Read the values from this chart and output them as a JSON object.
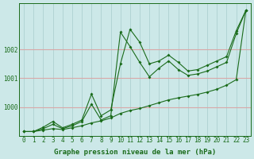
{
  "xlabel": "Graphe pression niveau de la mer (hPa)",
  "bg_color": "#cce8e8",
  "grid_color_h": "#d8a8a8",
  "grid_color_v": "#a8cccc",
  "line_color": "#1a6b1a",
  "xlim": [
    -0.5,
    23.5
  ],
  "ylim": [
    999.0,
    1003.6
  ],
  "yticks": [
    1000,
    1001,
    1002
  ],
  "ytick_labels": [
    "1000",
    "1001",
    "1002"
  ],
  "xticks": [
    0,
    1,
    2,
    3,
    4,
    5,
    6,
    7,
    8,
    9,
    10,
    11,
    12,
    13,
    14,
    15,
    16,
    17,
    18,
    19,
    20,
    21,
    22,
    23
  ],
  "line1_x": [
    0,
    1,
    2,
    3,
    4,
    5,
    6,
    7,
    8,
    9,
    10,
    11,
    12,
    13,
    14,
    15,
    16,
    17,
    18,
    19,
    20,
    21,
    22,
    23
  ],
  "line1_y": [
    999.15,
    999.15,
    999.2,
    999.25,
    999.22,
    999.28,
    999.35,
    999.45,
    999.52,
    999.62,
    999.78,
    999.88,
    999.95,
    1000.05,
    1000.15,
    1000.25,
    1000.32,
    1000.38,
    1000.44,
    1000.52,
    1000.62,
    1000.76,
    1000.95,
    1003.35
  ],
  "line2_x": [
    0,
    1,
    2,
    3,
    4,
    5,
    6,
    7,
    8,
    9,
    10,
    11,
    12,
    13,
    14,
    15,
    16,
    17,
    18,
    19,
    20,
    21,
    22,
    23
  ],
  "line2_y": [
    999.15,
    999.15,
    999.25,
    999.4,
    999.25,
    999.35,
    999.5,
    1000.1,
    999.55,
    999.7,
    1002.6,
    1002.1,
    1001.55,
    1001.05,
    1001.35,
    1001.6,
    1001.3,
    1001.1,
    1001.15,
    1001.25,
    1001.4,
    1001.55,
    1002.55,
    1003.35
  ],
  "line3_x": [
    0,
    1,
    2,
    3,
    4,
    5,
    6,
    7,
    8,
    9,
    10,
    11,
    12,
    13,
    14,
    15,
    16,
    17,
    18,
    19,
    20,
    21,
    22,
    23
  ],
  "line3_y": [
    999.15,
    999.15,
    999.3,
    999.5,
    999.28,
    999.4,
    999.55,
    1000.45,
    999.7,
    999.9,
    1001.5,
    1002.7,
    1002.25,
    1001.5,
    1001.6,
    1001.8,
    1001.55,
    1001.25,
    1001.3,
    1001.45,
    1001.6,
    1001.75,
    1002.65,
    1003.35
  ],
  "tick_fontsize": 5.5,
  "xlabel_fontsize": 6.5,
  "marker": "D",
  "marker_size": 2.0,
  "linewidth": 0.8
}
